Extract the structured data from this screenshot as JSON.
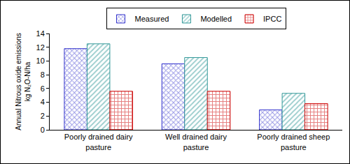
{
  "chart_data": {
    "type": "bar",
    "ylabel": [
      "Annual Nitrous oxide emissions",
      "kg N₂O-N/ha"
    ],
    "categories": [
      "Poorly drained dairy pasture",
      "Well drained dairy pasture",
      "Poorly drained sheep pasture"
    ],
    "series": [
      {
        "name": "Measured",
        "color": "#3333cc",
        "values": [
          11.8,
          9.6,
          2.9
        ]
      },
      {
        "name": "Modelled",
        "color": "#339999",
        "values": [
          12.5,
          10.5,
          5.3
        ]
      },
      {
        "name": "IPCC",
        "color": "#cc0000",
        "values": [
          5.6,
          5.6,
          3.8
        ]
      }
    ],
    "ylim": [
      0,
      14
    ],
    "yticks": [
      0,
      2,
      4,
      6,
      8,
      10,
      12,
      14
    ],
    "grid": false,
    "legend": "top"
  }
}
